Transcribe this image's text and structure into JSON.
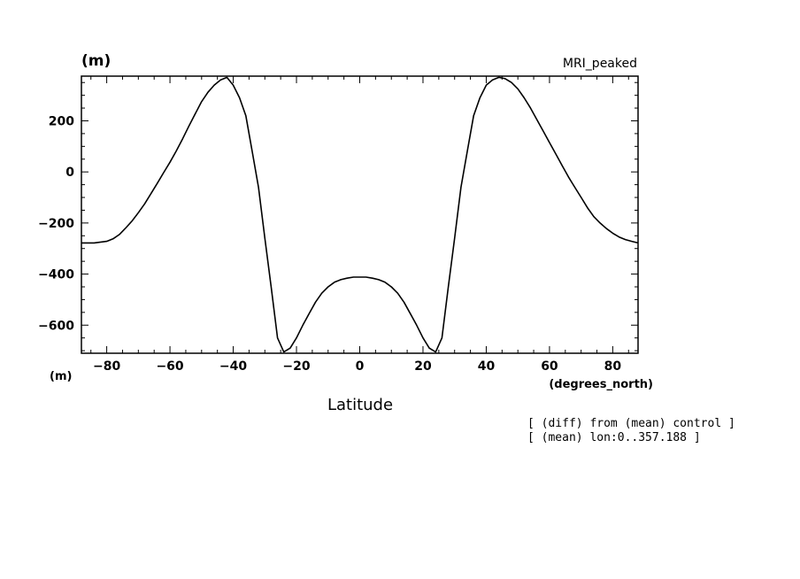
{
  "chart_data": {
    "type": "line",
    "title": "MRI_peaked",
    "ylabel": "(m)",
    "y_unit_label": "(m)",
    "xlabel": "Latitude",
    "x_unit_label": "(degrees_north)",
    "xlim": [
      -88,
      88
    ],
    "ylim": [
      -710,
      375
    ],
    "xticks": [
      -80,
      -60,
      -40,
      -20,
      0,
      20,
      40,
      60,
      80
    ],
    "xtick_labels": [
      "−80",
      "−60",
      "−40",
      "−20",
      "0",
      "20",
      "40",
      "60",
      "80"
    ],
    "yticks": [
      -600,
      -400,
      -200,
      0,
      200
    ],
    "ytick_labels": [
      "−600",
      "−400",
      "−200",
      "0",
      "200"
    ],
    "grid": false,
    "series": [
      {
        "color": "#000000",
        "x": [
          -88,
          -84,
          -80,
          -78,
          -76,
          -74,
          -72,
          -70,
          -68,
          -66,
          -64,
          -62,
          -60,
          -58,
          -56,
          -54,
          -52,
          -50,
          -48,
          -46,
          -44,
          -42,
          -40,
          -38,
          -36,
          -34,
          -32,
          -30,
          -28,
          -26,
          -24,
          -22,
          -20,
          -18,
          -16,
          -14,
          -12,
          -10,
          -8,
          -6,
          -4,
          -2,
          0,
          2,
          4,
          6,
          8,
          10,
          12,
          14,
          16,
          18,
          20,
          22,
          24,
          26,
          28,
          30,
          32,
          34,
          36,
          38,
          40,
          42,
          44,
          46,
          48,
          50,
          52,
          54,
          56,
          58,
          60,
          62,
          64,
          66,
          68,
          70,
          72,
          74,
          76,
          78,
          80,
          82,
          84,
          86,
          88
        ],
        "y": [
          -278,
          -278,
          -272,
          -262,
          -245,
          -220,
          -192,
          -160,
          -125,
          -85,
          -44,
          -3,
          38,
          82,
          130,
          180,
          228,
          275,
          312,
          340,
          360,
          370,
          340,
          290,
          220,
          80,
          -60,
          -260,
          -450,
          -650,
          -705,
          -690,
          -650,
          -600,
          -555,
          -510,
          -475,
          -450,
          -432,
          -422,
          -416,
          -412,
          -412,
          -412,
          -416,
          -422,
          -432,
          -450,
          -475,
          -510,
          -555,
          -600,
          -650,
          -690,
          -705,
          -650,
          -450,
          -260,
          -60,
          80,
          220,
          290,
          340,
          360,
          370,
          365,
          350,
          325,
          290,
          250,
          205,
          160,
          115,
          70,
          25,
          -20,
          -60,
          -100,
          -140,
          -175,
          -200,
          -222,
          -240,
          -255,
          -265,
          -272,
          -278
        ]
      }
    ],
    "annotations": [
      "[ (diff) from (mean) control ]",
      "[ (mean) lon:0..357.188 ]"
    ]
  }
}
